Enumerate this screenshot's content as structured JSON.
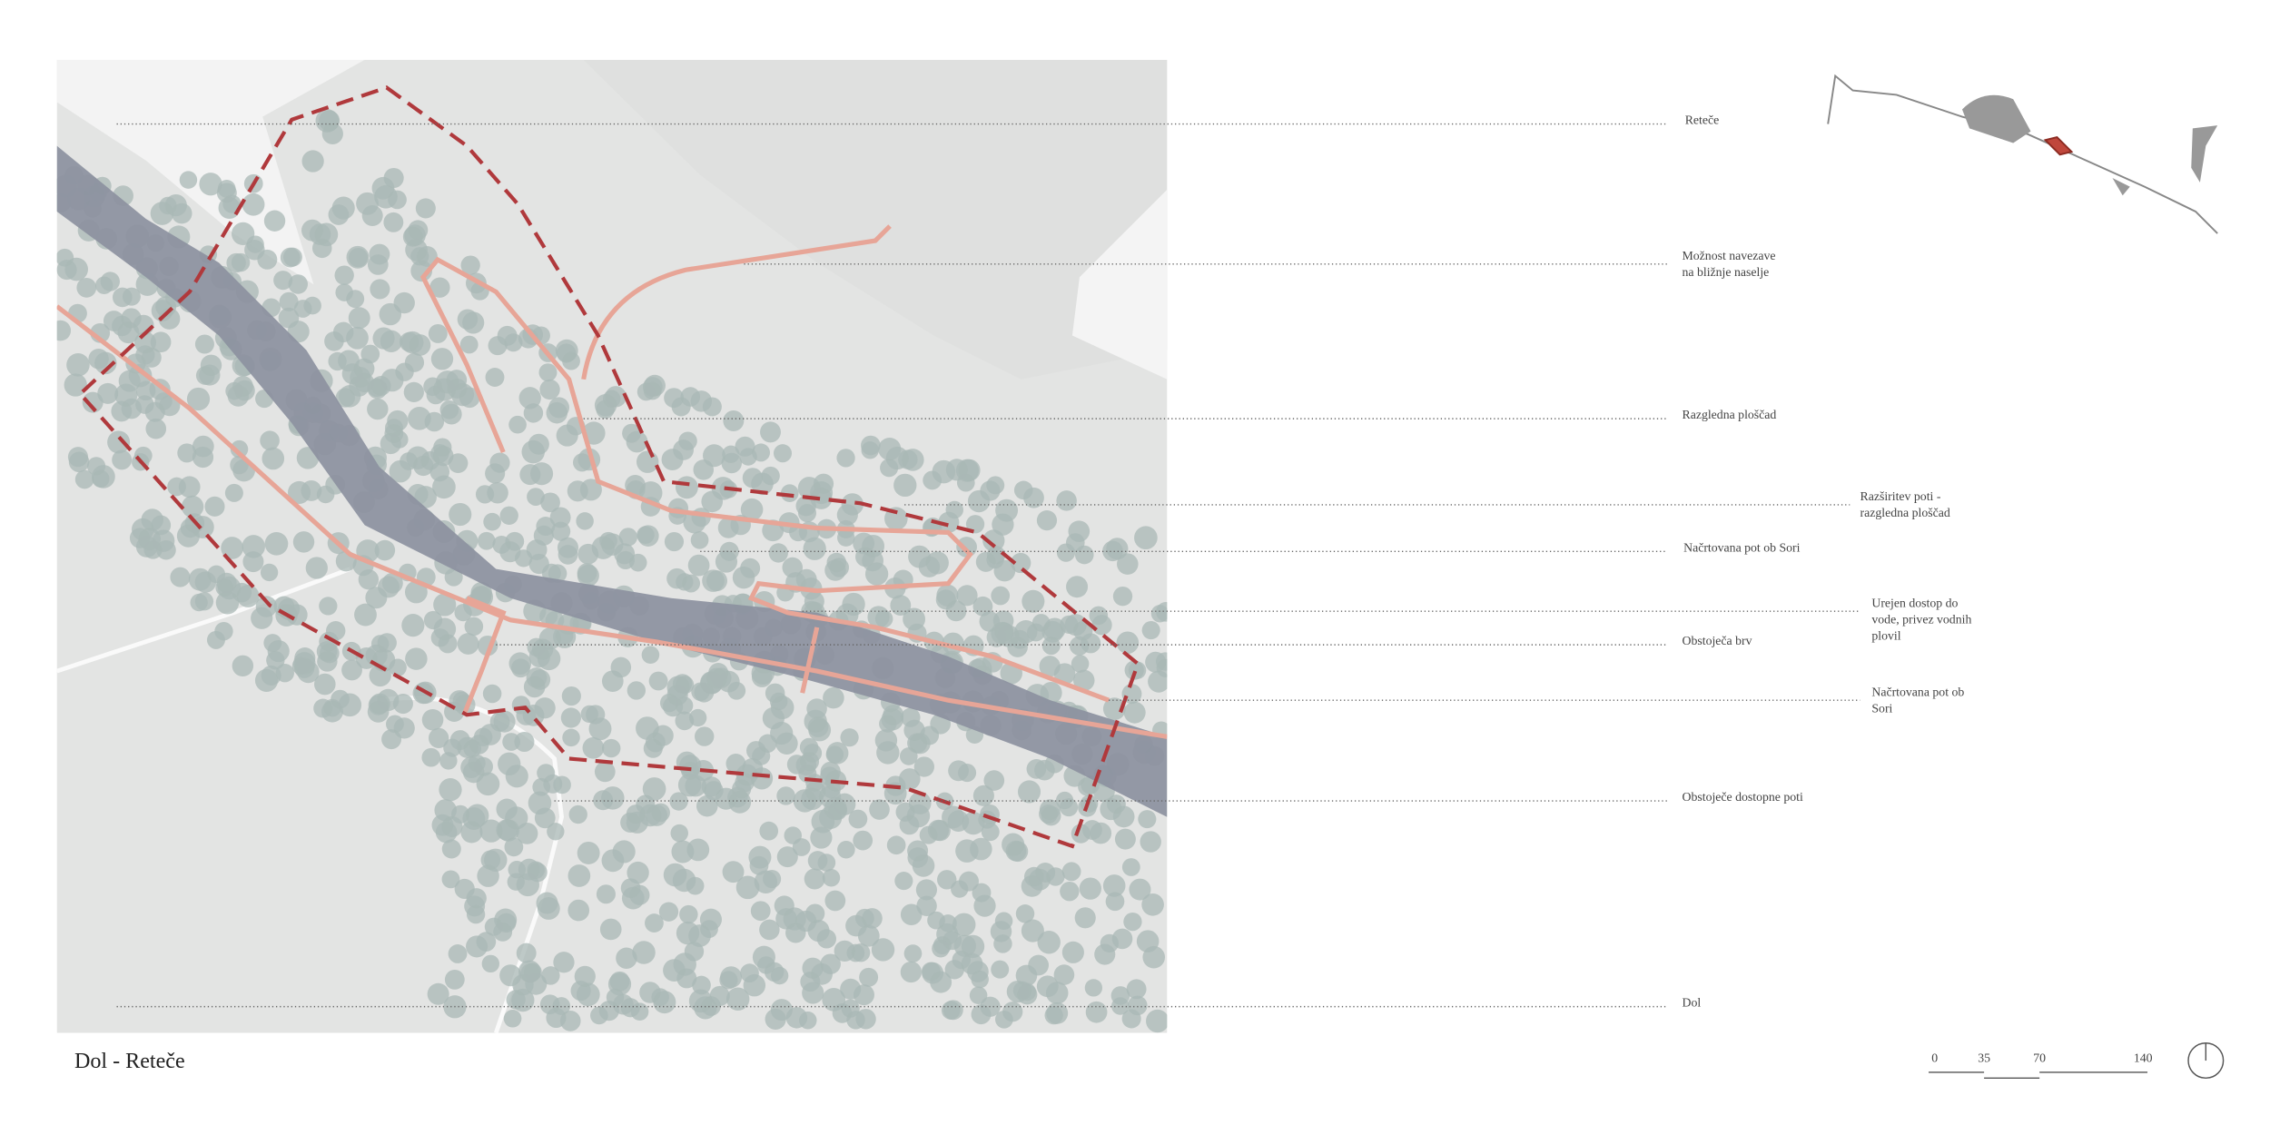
{
  "title": "Dol - Reteče",
  "annotations": [
    {
      "lines": [
        "Reteče"
      ]
    },
    {
      "lines": [
        "Možnost navezave",
        "na bližnje naselje"
      ]
    },
    {
      "lines": [
        "Razgledna ploščad"
      ]
    },
    {
      "lines": [
        "Razširitev poti -",
        "razgledna ploščad"
      ]
    },
    {
      "lines": [
        "Načrtovana pot ob Sori"
      ]
    },
    {
      "lines": [
        "Urejen dostop do",
        "vode, privez vodnih",
        "plovil"
      ]
    },
    {
      "lines": [
        "Obstoječa brv"
      ]
    },
    {
      "lines": [
        "Načrtovana pot ob",
        "Sori"
      ]
    },
    {
      "lines": [
        "Obstoječe dostopne poti"
      ]
    },
    {
      "lines": [
        "Dol"
      ]
    }
  ],
  "scale_bar": {
    "labels": [
      "0",
      "35",
      "70",
      "140"
    ]
  }
}
